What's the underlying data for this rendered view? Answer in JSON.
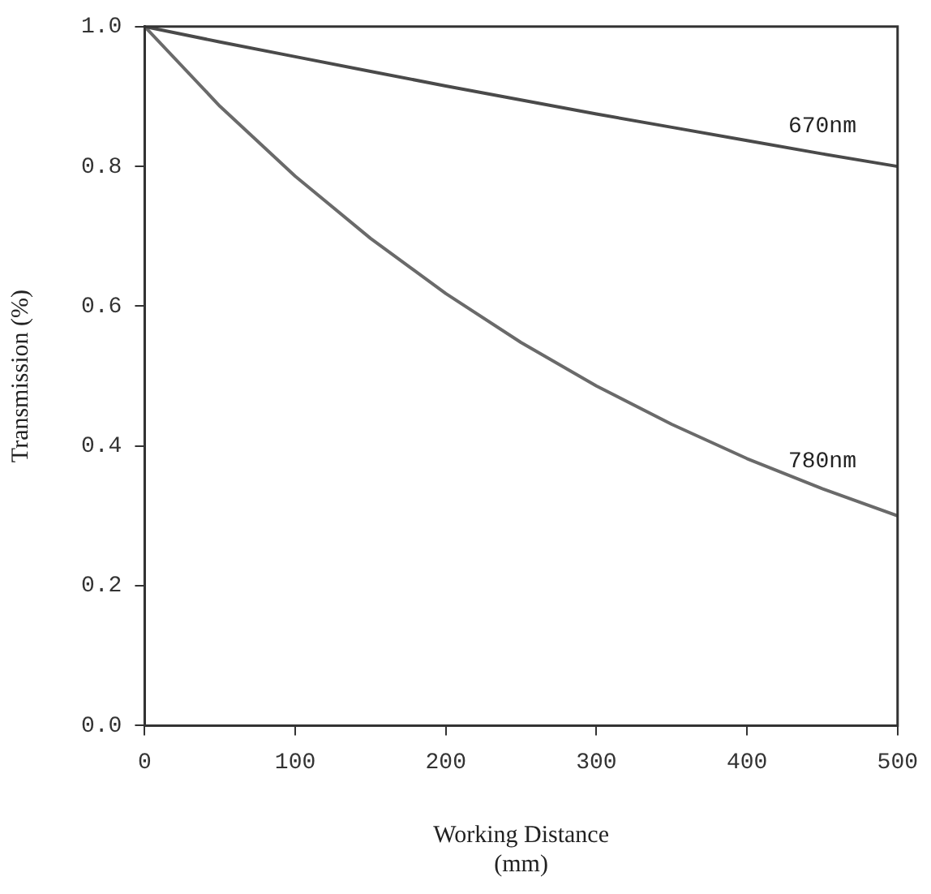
{
  "chart_data": {
    "type": "line",
    "xlabel": "Working Distance\n(mm)",
    "ylabel": "Transmission (%)",
    "x": [
      0,
      50,
      100,
      150,
      200,
      250,
      300,
      350,
      400,
      450,
      500
    ],
    "series": [
      {
        "name": "670nm",
        "color": "#4a4a4a",
        "values": [
          1.0,
          0.978,
          0.957,
          0.936,
          0.915,
          0.895,
          0.875,
          0.856,
          0.837,
          0.818,
          0.8
        ]
      },
      {
        "name": "780nm",
        "color": "#6a6a6a",
        "values": [
          1.0,
          0.886,
          0.786,
          0.697,
          0.618,
          0.548,
          0.486,
          0.431,
          0.382,
          0.339,
          0.3
        ]
      }
    ],
    "xlim": [
      0,
      500
    ],
    "xticks": [
      0,
      100,
      200,
      300,
      400,
      500
    ],
    "ylim": [
      0,
      1
    ],
    "yticks": [
      {
        "value": 0,
        "label": "0.0"
      },
      {
        "value": 0.2,
        "label": "0.2"
      },
      {
        "value": 0.4,
        "label": "0.4"
      },
      {
        "value": 0.6,
        "label": "0.6"
      },
      {
        "value": 0.8,
        "label": "0.8"
      },
      {
        "value": 1,
        "label": "1.0"
      }
    ],
    "grid": false,
    "legend": false,
    "marker": "none",
    "line_style": "solid"
  }
}
